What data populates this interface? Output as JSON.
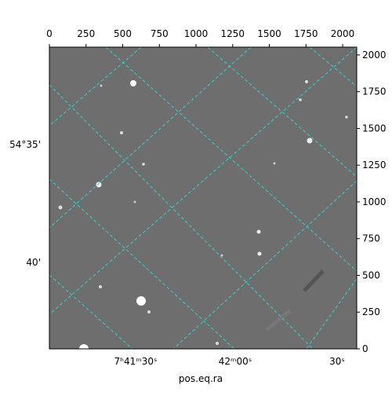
{
  "chart_data": {
    "type": "image",
    "xlabel": "pos.eq.ra",
    "xlim": [
      0,
      2096
    ],
    "xticks": [
      0,
      250,
      500,
      750,
      1000,
      1250,
      1500,
      1750,
      2000
    ],
    "ylim": [
      0,
      2053
    ],
    "yticks": [
      0,
      250,
      500,
      750,
      1000,
      1250,
      1500,
      1750,
      2000
    ],
    "ra_labels": [
      "7ʰ41ᵐ30ˢ",
      "42ᵐ00ˢ",
      "30ˢ"
    ],
    "dec_labels": [
      "54°35'",
      "40'"
    ]
  }
}
